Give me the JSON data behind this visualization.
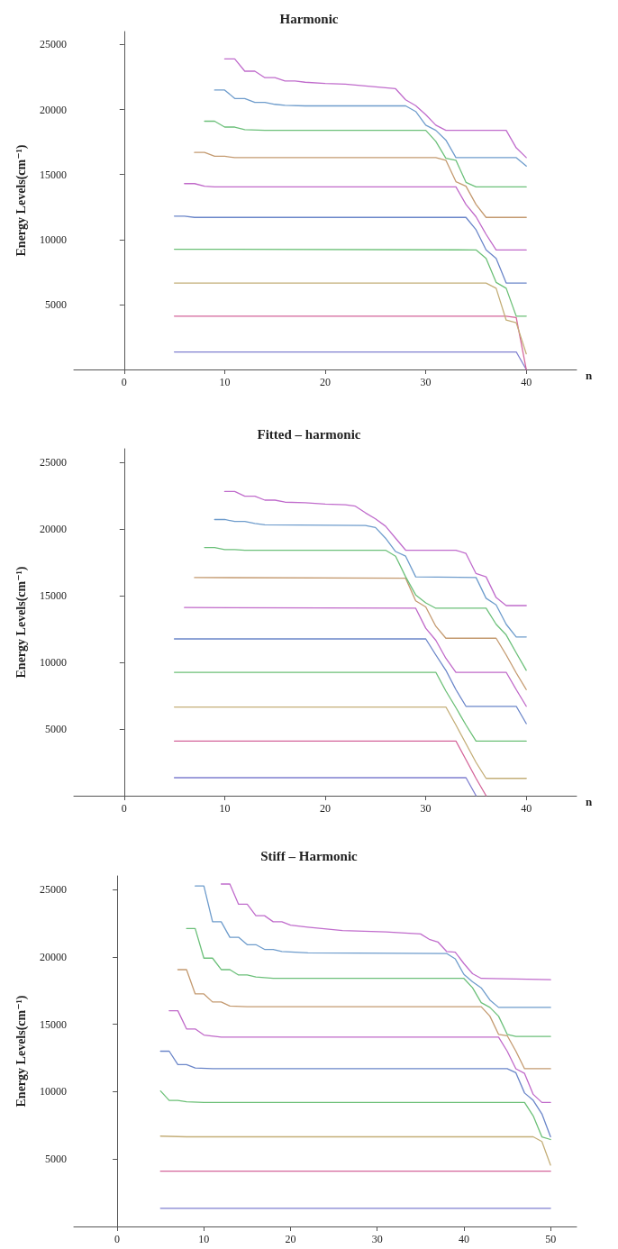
{
  "chart_data": [
    {
      "type": "line",
      "title": "Harmonic",
      "xlabel": "n",
      "ylabel": "Energy Levels(cm⁻¹)",
      "xlim": [
        -5,
        45
      ],
      "xticks": [
        0,
        10,
        20,
        30,
        40
      ],
      "ylim": [
        0,
        26000
      ],
      "yticks": [
        5000,
        10000,
        15000,
        20000,
        25000
      ],
      "marker": "none",
      "line_style": "solid",
      "series": [
        {
          "color": "#7f7fd0",
          "x": [
            5,
            39,
            40
          ],
          "values": [
            1350,
            1350,
            0
          ]
        },
        {
          "color": "#d4659a",
          "x": [
            5,
            38,
            39,
            40
          ],
          "values": [
            4100,
            4100,
            4000,
            0
          ]
        },
        {
          "color": "#c4ae78",
          "x": [
            5,
            36,
            37,
            38,
            39,
            40
          ],
          "values": [
            6650,
            6650,
            6250,
            3800,
            3600,
            1200
          ]
        },
        {
          "color": "#6cc077",
          "x": [
            5,
            35,
            36,
            37,
            38,
            39,
            40
          ],
          "values": [
            9250,
            9200,
            8550,
            6700,
            6250,
            4100,
            4100
          ]
        },
        {
          "color": "#6b86c9",
          "x": [
            5,
            6,
            7,
            34,
            35,
            36,
            37,
            38,
            40
          ],
          "values": [
            11800,
            11800,
            11700,
            11700,
            10750,
            9200,
            8550,
            6650,
            6650
          ]
        },
        {
          "color": "#c069c9",
          "x": [
            6,
            7,
            8,
            9,
            33,
            34,
            35,
            36,
            37,
            40
          ],
          "values": [
            14300,
            14300,
            14100,
            14050,
            14050,
            12700,
            11750,
            10400,
            9200,
            9200
          ]
        },
        {
          "color": "#c49a70",
          "x": [
            7,
            8,
            9,
            10,
            11,
            31,
            32,
            33,
            34,
            35,
            36,
            40
          ],
          "values": [
            16700,
            16700,
            16400,
            16400,
            16300,
            16300,
            16100,
            14450,
            14100,
            12700,
            11700,
            11700
          ]
        },
        {
          "color": "#6cc07a",
          "x": [
            8,
            9,
            10,
            11,
            12,
            14,
            30,
            31,
            32,
            33,
            34,
            35,
            40
          ],
          "values": [
            19100,
            19100,
            18650,
            18650,
            18450,
            18400,
            18400,
            17550,
            16250,
            16100,
            14400,
            14050,
            14050
          ]
        },
        {
          "color": "#6e9ccc",
          "x": [
            9,
            10,
            11,
            12,
            13,
            14,
            15,
            16,
            18,
            28,
            29,
            30,
            31,
            32,
            33,
            39,
            40
          ],
          "values": [
            21500,
            21500,
            20850,
            20850,
            20550,
            20550,
            20400,
            20320,
            20280,
            20280,
            19850,
            18800,
            18400,
            17650,
            16300,
            16300,
            15650
          ]
        },
        {
          "color": "#c06ccc",
          "x": [
            10,
            11,
            12,
            13,
            14,
            15,
            16,
            17,
            18,
            20,
            22,
            25,
            27,
            28,
            29,
            30,
            31,
            32,
            38,
            39,
            40
          ],
          "values": [
            23900,
            23900,
            22950,
            22950,
            22450,
            22450,
            22200,
            22200,
            22100,
            22000,
            21950,
            21750,
            21600,
            20750,
            20300,
            19600,
            18800,
            18400,
            18400,
            17050,
            16300
          ]
        }
      ]
    },
    {
      "type": "line",
      "title": "Fitted – harmonic",
      "xlabel": "n",
      "ylabel": "Energy Levels(cm⁻¹)",
      "xlim": [
        -5,
        45
      ],
      "xticks": [
        0,
        10,
        20,
        30,
        40
      ],
      "ylim": [
        0,
        26000
      ],
      "yticks": [
        5000,
        10000,
        15000,
        20000,
        25000
      ],
      "marker": "none",
      "line_style": "solid",
      "series": [
        {
          "color": "#7f7fd0",
          "x": [
            5,
            34,
            35
          ],
          "values": [
            1350,
            1350,
            0
          ]
        },
        {
          "color": "#d4659a",
          "x": [
            5,
            33,
            34,
            35,
            36
          ],
          "values": [
            4100,
            4100,
            2700,
            1300,
            0
          ]
        },
        {
          "color": "#c4ae78",
          "x": [
            5,
            32,
            33,
            34,
            35,
            36,
            40
          ],
          "values": [
            6650,
            6650,
            5300,
            3900,
            2500,
            1300,
            1300
          ]
        },
        {
          "color": "#6cc077",
          "x": [
            5,
            31,
            32,
            33,
            34,
            35,
            40
          ],
          "values": [
            9250,
            9250,
            7850,
            6600,
            5300,
            4100,
            4100
          ]
        },
        {
          "color": "#6b86c9",
          "x": [
            5,
            30,
            31,
            32,
            33,
            34,
            39,
            40
          ],
          "values": [
            11750,
            11750,
            10550,
            9400,
            7950,
            6700,
            6700,
            5400
          ]
        },
        {
          "color": "#c069c9",
          "x": [
            6,
            29,
            30,
            31,
            32,
            33,
            38,
            39,
            40
          ],
          "values": [
            14100,
            14050,
            12550,
            11650,
            10300,
            9250,
            9250,
            7950,
            6700
          ]
        },
        {
          "color": "#c49a70",
          "x": [
            7,
            28,
            29,
            30,
            31,
            32,
            37,
            38,
            39,
            40
          ],
          "values": [
            16350,
            16300,
            14600,
            14150,
            12700,
            11800,
            11800,
            10550,
            9200,
            7950
          ]
        },
        {
          "color": "#6cc07a",
          "x": [
            8,
            9,
            10,
            11,
            12,
            26,
            27,
            28,
            29,
            30,
            31,
            36,
            37,
            38,
            39,
            40
          ],
          "values": [
            18600,
            18600,
            18450,
            18450,
            18400,
            18400,
            17950,
            16400,
            15050,
            14450,
            14050,
            14050,
            12850,
            12050,
            10700,
            9400
          ]
        },
        {
          "color": "#6e9ccc",
          "x": [
            9,
            10,
            11,
            12,
            13,
            14,
            24,
            25,
            26,
            27,
            28,
            29,
            35,
            36,
            37,
            38,
            39,
            40
          ],
          "values": [
            20700,
            20700,
            20550,
            20550,
            20400,
            20300,
            20250,
            20100,
            19300,
            18300,
            17950,
            16400,
            16350,
            14800,
            14300,
            12850,
            11900,
            11900
          ]
        },
        {
          "color": "#c06ccc",
          "x": [
            10,
            11,
            12,
            13,
            14,
            15,
            16,
            18,
            20,
            22,
            23,
            24,
            25,
            26,
            27,
            28,
            33,
            34,
            35,
            36,
            37,
            38,
            40
          ],
          "values": [
            22800,
            22800,
            22450,
            22450,
            22150,
            22150,
            22000,
            21950,
            21850,
            21800,
            21700,
            21200,
            20750,
            20200,
            19300,
            18400,
            18400,
            18150,
            16650,
            16400,
            14850,
            14250,
            14250
          ]
        }
      ]
    },
    {
      "type": "line",
      "title": "Stiff – Harmonic",
      "ylabel": "Energy Levels(cm⁻¹)",
      "xlim": [
        -5,
        53
      ],
      "xticks": [
        0,
        10,
        20,
        30,
        40,
        50
      ],
      "ylim": [
        0,
        26000
      ],
      "yticks": [
        5000,
        10000,
        15000,
        20000,
        25000
      ],
      "marker": "none",
      "line_style": "solid",
      "series": [
        {
          "color": "#7f7fd0",
          "x": [
            5,
            50
          ],
          "values": [
            1350,
            1350
          ]
        },
        {
          "color": "#d4659a",
          "x": [
            5,
            50
          ],
          "values": [
            4100,
            4100
          ]
        },
        {
          "color": "#c4ae78",
          "x": [
            5,
            8,
            48,
            49,
            50
          ],
          "values": [
            6700,
            6650,
            6650,
            6300,
            4550
          ]
        },
        {
          "color": "#6cc077",
          "x": [
            5,
            6,
            7,
            8,
            10,
            47,
            48,
            49,
            50
          ],
          "values": [
            10050,
            9350,
            9350,
            9250,
            9200,
            9200,
            8200,
            6650,
            6450
          ]
        },
        {
          "color": "#6b86c9",
          "x": [
            5,
            6,
            7,
            8,
            9,
            11,
            45,
            46,
            47,
            48,
            49,
            50
          ],
          "values": [
            13000,
            13000,
            12000,
            12000,
            11750,
            11700,
            11700,
            11400,
            9900,
            9350,
            8350,
            6650
          ]
        },
        {
          "color": "#c069c9",
          "x": [
            6,
            7,
            8,
            9,
            10,
            12,
            44,
            45,
            46,
            47,
            48,
            49,
            50
          ],
          "values": [
            16000,
            16000,
            14650,
            14650,
            14200,
            14050,
            14050,
            13000,
            11700,
            11350,
            9800,
            9200,
            9200
          ]
        },
        {
          "color": "#c49a70",
          "x": [
            7,
            8,
            9,
            10,
            11,
            12,
            13,
            15,
            42,
            43,
            44,
            45,
            46,
            47,
            50
          ],
          "values": [
            19050,
            19050,
            17250,
            17250,
            16650,
            16650,
            16350,
            16300,
            16300,
            15600,
            14250,
            14150,
            13000,
            11700,
            11700
          ]
        },
        {
          "color": "#6cc07a",
          "x": [
            8,
            9,
            10,
            11,
            12,
            13,
            14,
            15,
            16,
            18,
            40,
            41,
            42,
            43,
            44,
            45,
            46,
            50
          ],
          "values": [
            22100,
            22100,
            19900,
            19900,
            19050,
            19050,
            18650,
            18650,
            18500,
            18400,
            18400,
            17700,
            16600,
            16250,
            15600,
            14250,
            14100,
            14100
          ]
        },
        {
          "color": "#6e9ccc",
          "x": [
            9,
            10,
            11,
            12,
            13,
            14,
            15,
            16,
            17,
            18,
            19,
            22,
            38,
            39,
            40,
            41,
            42,
            43,
            44,
            50
          ],
          "values": [
            25250,
            25250,
            22600,
            22600,
            21450,
            21450,
            20900,
            20900,
            20550,
            20550,
            20400,
            20300,
            20250,
            19850,
            18700,
            18150,
            17700,
            16800,
            16250,
            16250
          ]
        },
        {
          "color": "#c06ccc",
          "x": [
            12,
            13,
            14,
            15,
            16,
            17,
            18,
            19,
            20,
            22,
            26,
            31,
            35,
            36,
            37,
            38,
            39,
            40,
            41,
            42,
            50
          ],
          "values": [
            25400,
            25400,
            23900,
            23900,
            23050,
            23050,
            22600,
            22600,
            22350,
            22200,
            21950,
            21850,
            21700,
            21300,
            21100,
            20400,
            20350,
            19500,
            18750,
            18400,
            18300
          ]
        }
      ]
    }
  ]
}
